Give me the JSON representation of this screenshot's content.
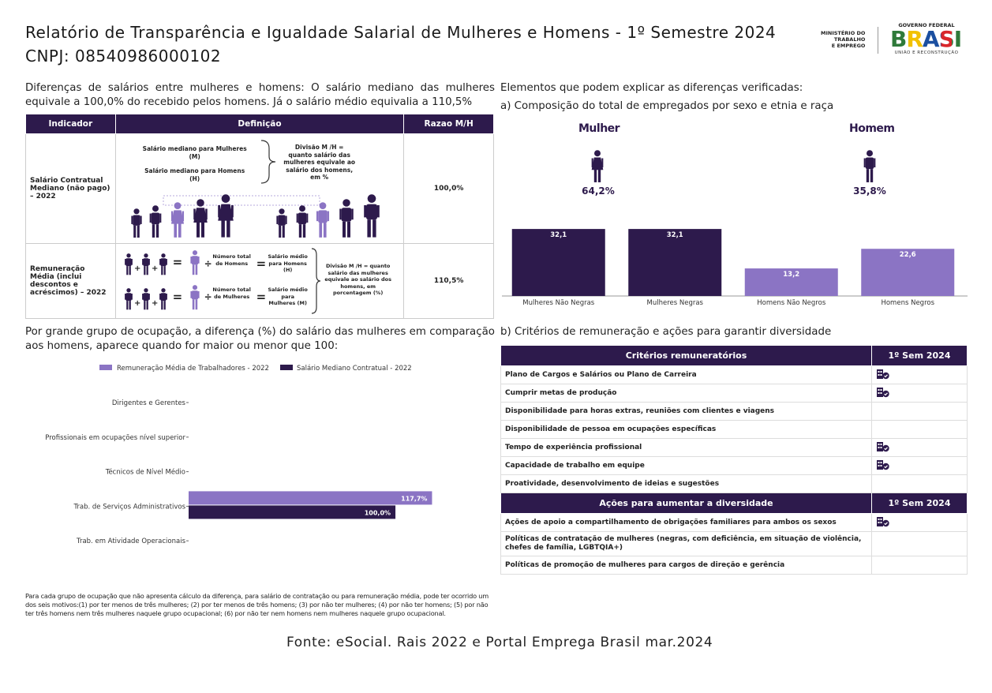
{
  "header": {
    "title_line1": "Relatório de Transparência e Igualdade Salarial de Mulheres e Homens - 1º Semestre 2024",
    "title_line2": "CNPJ: 08540986000102",
    "ministry": [
      "MINISTÉRIO DO",
      "TRABALHO",
      "E EMPREGO"
    ],
    "gov_top": "GOVERNO FEDERAL",
    "gov_brasil": "BRASIL",
    "gov_bottom": "UNIÃO E RECONSTRUÇÃO"
  },
  "salary_diff": {
    "intro": "Diferenças de salários entre mulheres e homens: O salário mediano das mulheres equivale a 100,0% do recebido pelos homens. Já o salário médio equivalia a 110,5%",
    "col_indicador": "Indicador",
    "col_definicao": "Definição",
    "col_razao": "Razao M/H",
    "row1_indicador": "Salário Contratual Mediano (não pago) – 2022",
    "row1_med_m": "Salário mediano para Mulheres (M)",
    "row1_med_h": "Salário mediano para Homens (H)",
    "row1_div": "Divisão M /H = quanto salário das mulheres equivale ao salário dos homens, em %",
    "row1_razao": "100,0%",
    "row2_indicador": "Remuneração Média (inclui descontos e acréscimos) – 2022",
    "row2_num_h": "Número total de Homens",
    "row2_sal_h": "Salário médio para Homens (H)",
    "row2_num_m": "Número total de Mulheres",
    "row2_sal_m": "Salário médio para Mulheres (M)",
    "row2_div": "Divisão M /H = quanto salário das mulheres equivale ao salário dos homens, em porcentagem (%)",
    "row2_razao": "110,5%",
    "plus": "+",
    "equals": "=",
    "divide": "÷"
  },
  "composition": {
    "heading": "Elementos que podem explicar as diferenças verificadas:",
    "subheading": "a) Composição do total de empregados por sexo e etnia e raça",
    "mulher_label": "Mulher",
    "mulher_pct": "64,2%",
    "homem_label": "Homem",
    "homem_pct": "35,8%"
  },
  "chart_data": [
    {
      "type": "bar",
      "title": "Composição do total de empregados por sexo e etnia e raça",
      "categories": [
        "Mulheres Não Negras",
        "Mulheres Negras",
        "Homens Não Negros",
        "Homens Negros"
      ],
      "values": [
        32.1,
        32.1,
        13.2,
        22.6
      ],
      "value_labels": [
        "32,1",
        "32,1",
        "13,2",
        "22,6"
      ],
      "colors": [
        "#2d1a4c",
        "#2d1a4c",
        "#8b74c4",
        "#8b74c4"
      ],
      "ylim": [
        0,
        35
      ]
    },
    {
      "type": "bar",
      "orientation": "horizontal",
      "title": "Por grande grupo de ocupação, a diferença (%) do salário das mulheres em comparação aos homens, aparece quando for maior ou menor que 100:",
      "categories": [
        "Dirigentes e Gerentes",
        "Profissionais em ocupações nível superior",
        "Técnicos de Nível Médio",
        "Trab. de Serviços Administrativos",
        "Trab. em Atividade Operacionais"
      ],
      "series": [
        {
          "name": "Remuneração Média de Trabalhadores - 2022",
          "color": "#8b74c4",
          "values": [
            null,
            null,
            null,
            117.7,
            null
          ],
          "labels": [
            "",
            "",
            "",
            "117,7%",
            ""
          ]
        },
        {
          "name": "Salário Mediano Contratual - 2022",
          "color": "#2d1a4c",
          "values": [
            null,
            null,
            null,
            100.0,
            null
          ],
          "labels": [
            "",
            "",
            "",
            "100,0%",
            ""
          ]
        }
      ],
      "xlim": [
        0,
        145
      ]
    }
  ],
  "occupation": {
    "heading": "Por grande grupo de ocupação, a diferença (%) do salário das mulheres em comparação aos homens, aparece quando for maior ou menor que 100:",
    "legend_1": "Remuneração Média de Trabalhadores - 2022",
    "legend_2": "Salário Mediano Contratual - 2022"
  },
  "criteria": {
    "heading": "b) Critérios de remuneração e ações para garantir diversidade",
    "col_criterios": "Critérios remuneratórios",
    "col_sem": "1º Sem 2024",
    "rows": [
      {
        "label": "Plano de Cargos e Salários ou Plano de Carreira",
        "icon": "building-check-icon",
        "checked": true
      },
      {
        "label": "Cumprir metas de produção",
        "icon": "building-check-icon",
        "checked": true
      },
      {
        "label": "Disponibilidade para horas extras, reuniões com clientes e viagens",
        "checked": false
      },
      {
        "label": "Disponibilidade de pessoa em ocupações específicas",
        "checked": false
      },
      {
        "label": "Tempo de experiência profissional",
        "icon": "building-check-icon",
        "checked": true
      },
      {
        "label": "Capacidade de trabalho em equipe",
        "icon": "building-check-icon",
        "checked": true
      },
      {
        "label": "Proatividade, desenvolvimento de ideias e sugestões",
        "checked": false
      }
    ],
    "col_acoes": "Ações para aumentar a diversidade",
    "col_sem2": "1º Sem 2024",
    "actions": [
      {
        "label": "Ações de apoio a compartilhamento de obrigações familiares para ambos os sexos",
        "icon": "building-check-icon",
        "checked": true
      },
      {
        "label": "Políticas de contratação de mulheres (negras, com deficiência, em situação de violência, chefes de família, LGBTQIA+)",
        "checked": false
      },
      {
        "label": "Políticas de promoção de mulheres para cargos de direção e gerência",
        "checked": false
      }
    ]
  },
  "footnote": "Para cada grupo de ocupação que não apresenta cálculo da diferença, para salário de contratação ou para remuneração média, pode ter ocorrido um dos seis motivos:(1) por ter menos de três mulheres; (2) por ter menos de três homens; (3) por não ter mulheres; (4) por não ter homens; (5) por não ter três homens nem três mulheres naquele grupo ocupacional; (6) por não ter nem homens nem mulheres naquele grupo ocupacional.",
  "source": "Fonte: eSocial. Rais 2022 e Portal Emprega Brasil mar.2024",
  "colors": {
    "dark": "#2d1a4c",
    "light": "#8b74c4",
    "lighter": "#a592d6"
  }
}
